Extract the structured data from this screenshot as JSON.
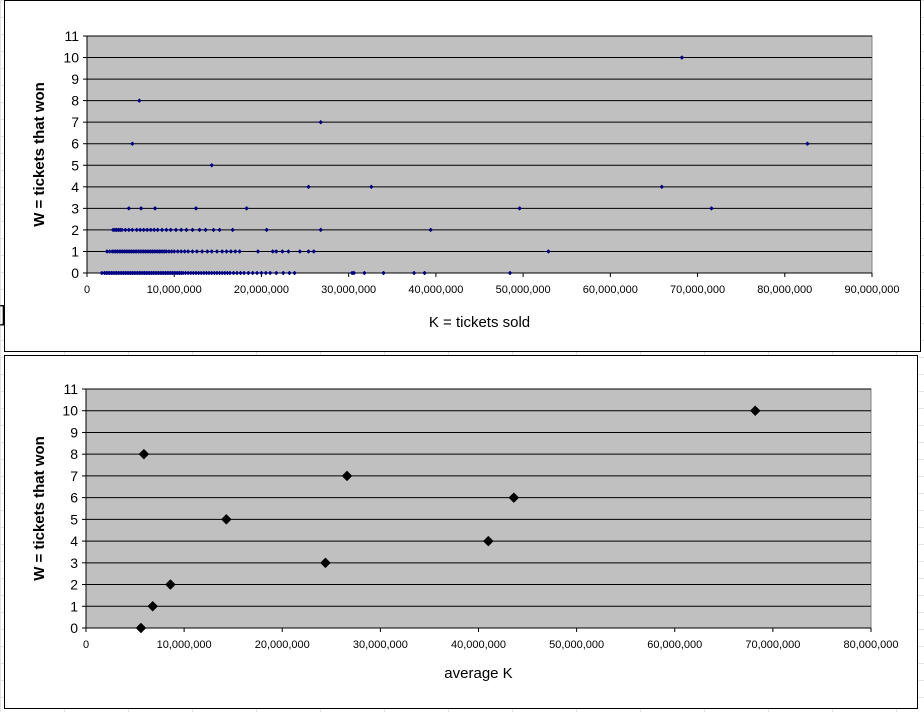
{
  "colors": {
    "plot_bg": "#c0c0c0",
    "gridline": "#000000",
    "series_top": "#000080",
    "series_bottom": "#000000"
  },
  "chart_data": [
    {
      "type": "scatter",
      "xlabel": "K = tickets sold",
      "ylabel": "W = tickets that won",
      "xlim": [
        0,
        90000000
      ],
      "ylim": [
        0,
        11
      ],
      "xticks": [
        "0",
        "10,000,000",
        "20,000,000",
        "30,000,000",
        "40,000,000",
        "50,000,000",
        "60,000,000",
        "70,000,000",
        "80,000,000",
        "90,000,000"
      ],
      "yticks": [
        "0",
        "1",
        "2",
        "3",
        "4",
        "5",
        "6",
        "7",
        "8",
        "9",
        "10",
        "11"
      ],
      "grid": "horizontal",
      "legend": "none",
      "marker": "small-diamond",
      "series": [
        {
          "x": [
            1700000,
            2000000,
            2200000,
            2400000,
            2600000,
            2800000,
            3000000,
            3200000,
            3400000,
            3600000,
            3800000,
            4000000,
            4200000,
            4400000,
            4600000,
            4800000,
            5000000,
            5200000,
            5400000,
            5600000,
            5800000,
            6000000,
            6200000,
            6400000,
            6600000,
            6800000,
            7000000,
            7200000,
            7400000,
            7600000,
            7800000,
            8000000,
            8200000,
            8400000,
            8600000,
            8800000,
            9000000,
            9200000,
            9400000,
            9600000,
            9800000,
            10000000,
            10200000,
            10400000,
            10600000,
            10800000,
            11000000,
            11300000,
            11600000,
            11900000,
            12200000,
            12500000,
            12800000,
            13100000,
            13400000,
            13700000,
            14000000,
            14300000,
            14600000,
            14900000,
            15200000,
            15500000,
            15800000,
            16100000,
            16400000,
            16800000,
            17200000,
            17600000,
            18000000,
            18500000,
            19000000,
            19500000,
            20000000,
            20500000,
            21000000,
            21700000,
            22500000,
            23200000,
            23800000,
            30400000,
            30600000,
            31800000,
            34000000,
            37500000,
            38700000,
            48500000,
            2300000,
            2600000,
            2900000,
            3100000,
            3300000,
            3500000,
            3700000,
            3900000,
            4100000,
            4300000,
            4500000,
            4700000,
            4900000,
            5100000,
            5300000,
            5500000,
            5700000,
            5900000,
            6100000,
            6300000,
            6500000,
            6700000,
            6900000,
            7100000,
            7300000,
            7500000,
            7700000,
            7900000,
            8100000,
            8300000,
            8500000,
            8700000,
            8900000,
            9100000,
            9400000,
            9700000,
            10000000,
            10400000,
            10800000,
            11200000,
            11600000,
            12100000,
            12600000,
            13200000,
            13800000,
            14300000,
            14900000,
            15500000,
            16000000,
            16500000,
            17000000,
            17500000,
            19600000,
            21300000,
            21700000,
            22400000,
            23100000,
            24400000,
            25400000,
            26000000,
            52900000,
            3000000,
            3200000,
            3400000,
            3600000,
            3800000,
            4000000,
            4400000,
            4800000,
            5200000,
            5700000,
            6100000,
            6500000,
            6900000,
            7300000,
            7700000,
            8100000,
            8600000,
            9100000,
            9600000,
            10200000,
            10800000,
            11400000,
            12100000,
            12900000,
            13600000,
            14500000,
            15200000,
            16700000,
            20600000,
            26800000,
            39400000,
            4800000,
            6200000,
            7800000,
            12500000,
            18300000,
            49600000,
            71600000,
            25400000,
            32600000,
            65900000,
            14300000,
            5200000,
            82600000,
            26800000,
            6000000,
            68200000
          ],
          "y": [
            0,
            0,
            0,
            0,
            0,
            0,
            0,
            0,
            0,
            0,
            0,
            0,
            0,
            0,
            0,
            0,
            0,
            0,
            0,
            0,
            0,
            0,
            0,
            0,
            0,
            0,
            0,
            0,
            0,
            0,
            0,
            0,
            0,
            0,
            0,
            0,
            0,
            0,
            0,
            0,
            0,
            0,
            0,
            0,
            0,
            0,
            0,
            0,
            0,
            0,
            0,
            0,
            0,
            0,
            0,
            0,
            0,
            0,
            0,
            0,
            0,
            0,
            0,
            0,
            0,
            0,
            0,
            0,
            0,
            0,
            0,
            0,
            0,
            0,
            0,
            0,
            0,
            0,
            0,
            0,
            0,
            0,
            0,
            0,
            0,
            0,
            1,
            1,
            1,
            1,
            1,
            1,
            1,
            1,
            1,
            1,
            1,
            1,
            1,
            1,
            1,
            1,
            1,
            1,
            1,
            1,
            1,
            1,
            1,
            1,
            1,
            1,
            1,
            1,
            1,
            1,
            1,
            1,
            1,
            1,
            1,
            1,
            1,
            1,
            1,
            1,
            1,
            1,
            1,
            1,
            1,
            1,
            1,
            1,
            1,
            1,
            1,
            1,
            1,
            1,
            1,
            1,
            1,
            1,
            1,
            1,
            1,
            2,
            2,
            2,
            2,
            2,
            2,
            2,
            2,
            2,
            2,
            2,
            2,
            2,
            2,
            2,
            2,
            2,
            2,
            2,
            2,
            2,
            2,
            2,
            2,
            2,
            2,
            2,
            2,
            2,
            2,
            2,
            3,
            3,
            3,
            3,
            3,
            3,
            3,
            4,
            4,
            4,
            5,
            6,
            6,
            7,
            8,
            10
          ]
        }
      ]
    },
    {
      "type": "scatter",
      "xlabel": "average K",
      "ylabel": "W = tickets that won",
      "xlim": [
        0,
        80000000
      ],
      "ylim": [
        0,
        11
      ],
      "xticks": [
        "0",
        "10,000,000",
        "20,000,000",
        "30,000,000",
        "40,000,000",
        "50,000,000",
        "60,000,000",
        "70,000,000",
        "80,000,000"
      ],
      "yticks": [
        "0",
        "1",
        "2",
        "3",
        "4",
        "5",
        "6",
        "7",
        "8",
        "9",
        "10",
        "11"
      ],
      "grid": "horizontal",
      "legend": "none",
      "marker": "diamond",
      "series": [
        {
          "x": [
            5600000,
            6800000,
            8600000,
            24400000,
            41000000,
            14300000,
            43600000,
            26600000,
            5900000,
            68200000
          ],
          "y": [
            0,
            1,
            2,
            3,
            4,
            5,
            6,
            7,
            8,
            10
          ]
        }
      ]
    }
  ]
}
